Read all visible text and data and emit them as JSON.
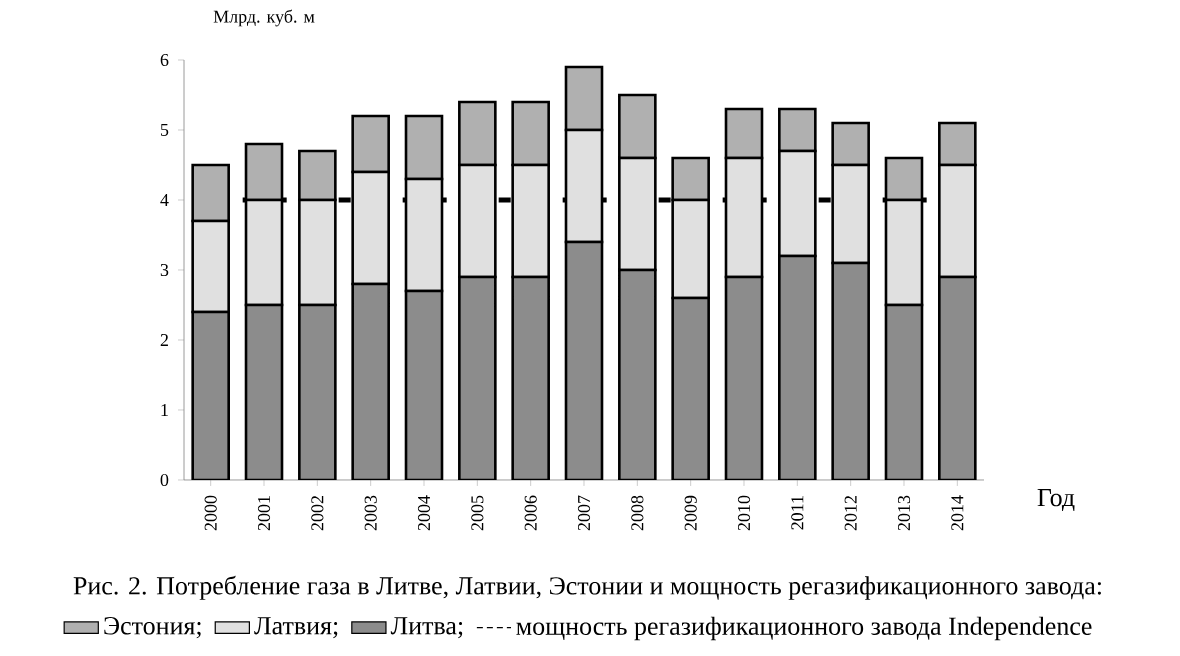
{
  "chart_data": {
    "type": "bar",
    "stacked": true,
    "title": "Рис. 2. Потребление газа в Литве, Латвии, Эстонии и мощность регазификационного завода:",
    "xlabel": "Год",
    "ylabel": "Млрд. куб. м",
    "categories": [
      "2000",
      "2001",
      "2002",
      "2003",
      "2004",
      "2005",
      "2006",
      "2007",
      "2008",
      "2009",
      "2010",
      "2011",
      "2012",
      "2013",
      "2014"
    ],
    "series": [
      {
        "name": "Литва;",
        "color": "#8c8c8c",
        "values": [
          2.4,
          2.5,
          2.5,
          2.8,
          2.7,
          2.9,
          2.9,
          3.4,
          3.0,
          2.6,
          2.9,
          3.2,
          3.1,
          2.5,
          2.9
        ]
      },
      {
        "name": "Латвия;",
        "color": "#e0e0e0",
        "values": [
          1.3,
          1.5,
          1.5,
          1.6,
          1.6,
          1.6,
          1.6,
          1.6,
          1.6,
          1.4,
          1.7,
          1.5,
          1.4,
          1.5,
          1.6
        ]
      },
      {
        "name": "Эстония;",
        "color": "#b0b0b0",
        "values": [
          0.8,
          0.8,
          0.7,
          0.8,
          0.9,
          0.9,
          0.9,
          0.9,
          0.9,
          0.6,
          0.7,
          0.6,
          0.6,
          0.6,
          0.6
        ]
      }
    ],
    "ylim": [
      0,
      6
    ],
    "yticks": [
      0,
      1,
      2,
      3,
      4,
      5,
      6
    ],
    "ref_lines": [
      {
        "axis": "y",
        "value": 4,
        "label": "мощность регазификационного завода Independence",
        "color": "#000000",
        "line_style": "dashed"
      }
    ],
    "legend": "bottom"
  }
}
